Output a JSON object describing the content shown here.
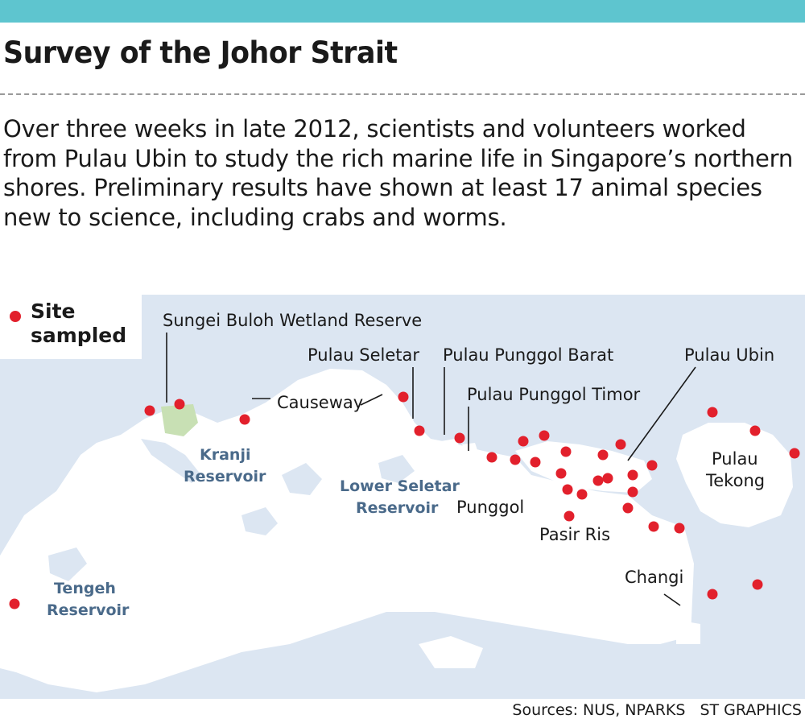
{
  "title": "Survey of the Johor Strait",
  "intro": "Over three weeks in late 2012, scientists and volunteers worked from Pulau Ubin to study the rich marine life in Singapore’s northern shores. Preliminary results have shown at least 17 animal species new to science, including crabs and worms.",
  "legend": {
    "label": "Site sampled",
    "marker_color": "#e2202c"
  },
  "colors": {
    "sea": "#dce6f2",
    "land": "#ffffff",
    "wetland": "#c8e0b4",
    "accent_bar": "#5ec5cf",
    "reservoir_label": "#4a6a8a"
  },
  "places": {
    "sungei_buloh": "Sungei Buloh Wetland Reserve",
    "pulau_seletar": "Pulau Seletar",
    "pulau_punggol_barat": "Pulau Punggol Barat",
    "pulau_ubin": "Pulau Ubin",
    "causeway": "Causeway",
    "pulau_punggol_timor": "Pulau Punggol Timor",
    "punggol": "Punggol",
    "pasir_ris": "Pasir Ris",
    "changi": "Changi",
    "pulau_tekong_1": "Pulau",
    "pulau_tekong_2": "Tekong"
  },
  "reservoirs": {
    "kranji_1": "Kranji",
    "kranji_2": "Reservoir",
    "lower_seletar_1": "Lower Seletar",
    "lower_seletar_2": "Reservoir",
    "tengeh_1": "Tengeh",
    "tengeh_2": "Reservoir"
  },
  "credits": {
    "sources": "Sources: NUS, NPARKS",
    "graphics": "ST GRAPHICS"
  }
}
